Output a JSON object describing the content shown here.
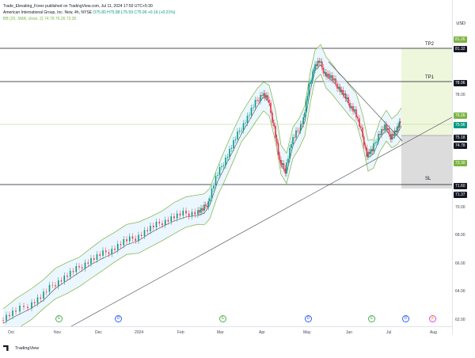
{
  "header": {
    "line1": "Trade_Elevating_Forex published on TradingView.com, Jul 11, 2024 17:50 UTC+5:30",
    "symbol": "American International Group, Inc. New, 4h, NYSE",
    "ohlc": "O75.80 H75.98 L75.59 C75.96 +0.16 (+0.21%)",
    "bb_label": "BB (20, SMA, close, 2)",
    "bb_vals": [
      "74.78",
      "76.26",
      "73.30"
    ]
  },
  "currency": "USD",
  "price_labels": [
    "81.26",
    "81.32",
    "78.96",
    "78.00",
    "76.26",
    "75.96",
    "75.18",
    "74.78",
    "73.30",
    "71.60",
    "71.37",
    "70.00",
    "68.00",
    "66.00",
    "64.00",
    "62.00"
  ],
  "price_plain": [
    "78.00",
    "70.00",
    "68.00",
    "66.00",
    "64.00",
    "62.00"
  ],
  "price_tags": [
    {
      "text": "81.26",
      "color": "#7cb342"
    },
    {
      "text": "81.32",
      "color": "#131722"
    },
    {
      "text": "78.96",
      "color": "#131722"
    },
    {
      "text": "76.26",
      "color": "#7cb342"
    },
    {
      "text": "75.96",
      "color": "#089981"
    },
    {
      "text": "75.18",
      "color": "#131722"
    },
    {
      "text": "74.78",
      "color": "#131722"
    },
    {
      "text": "73.30",
      "color": "#7cb342"
    },
    {
      "text": "71.60",
      "color": "#131722"
    },
    {
      "text": "71.37",
      "color": "#131722"
    }
  ],
  "time_labels": [
    "Oct",
    "Nov",
    "Dec",
    "2024",
    "Feb",
    "Mar",
    "Apr",
    "May",
    "Jun",
    "Jul",
    "Aug"
  ],
  "zones": {
    "tp2": "TP2",
    "tp1": "TP1",
    "sl": "SL"
  },
  "footer": {
    "brand": "TradingView"
  },
  "events": [
    {
      "label": "E",
      "color": "#4caf50"
    },
    {
      "label": "D",
      "color": "#2962ff"
    },
    {
      "label": "E",
      "color": "#4caf50"
    },
    {
      "label": "D",
      "color": "#2962ff"
    },
    {
      "label": "E",
      "color": "#4caf50"
    },
    {
      "label": "D",
      "color": "#2962ff"
    },
    {
      "label": "⚡",
      "color": "#e040fb"
    },
    {
      "label": "E",
      "color": "#e040fb"
    }
  ],
  "colors": {
    "up": "#089981",
    "down": "#f23645",
    "bb": "#7cb342",
    "bb_fill": "#e3f2fd"
  }
}
